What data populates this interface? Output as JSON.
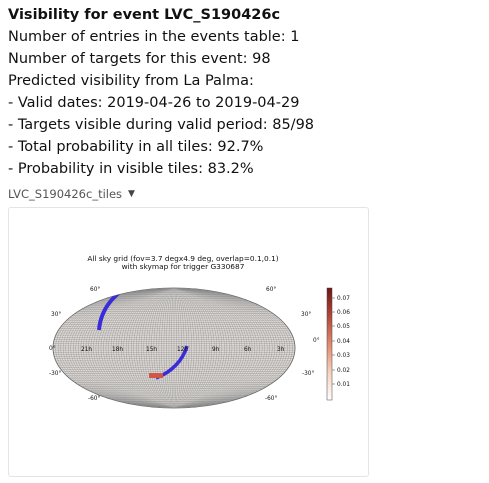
{
  "header": {
    "title": "Visibility for event LVC_S190426c",
    "lines": [
      "Number of entries in the events table: 1",
      "Number of targets for this event: 98",
      "Predicted visibility from La Palma:",
      "- Valid dates: 2019-04-26 to 2019-04-29",
      "- Targets visible during valid period: 85/98",
      "- Total probability in all tiles: 92.7%",
      "- Probability in visible tiles: 83.2%"
    ]
  },
  "dropdown": {
    "label": "LVC_S190426c_tiles",
    "icon": "caret-down-icon"
  },
  "plot": {
    "title_line1": "All sky grid (fov=3.7 degx4.9 deg, overlap=0.1,0.1)",
    "title_line2": "with skymap for trigger G330687",
    "ra_labels": [
      "21h",
      "18h",
      "15h",
      "12h",
      "9h",
      "6h",
      "3h"
    ],
    "dec_labels": {
      "n60": "60°",
      "n30": "30°",
      "zero": "0°",
      "s30": "-30°",
      "s60": "-60°"
    },
    "colorbar": {
      "ticks": [
        "0.07",
        "0.06",
        "0.05",
        "0.04",
        "0.03",
        "0.02",
        "0.01"
      ],
      "colors": {
        "top": "#7a1a1a",
        "mid": "#d9705a",
        "low": "#f7d9c8",
        "bottom": "#ffffff"
      }
    },
    "colors": {
      "background": "#dedad6",
      "grid": "#8b8b8b",
      "highlight_blue": "#3a2cd9",
      "highlight_red": "#d0564a"
    }
  }
}
